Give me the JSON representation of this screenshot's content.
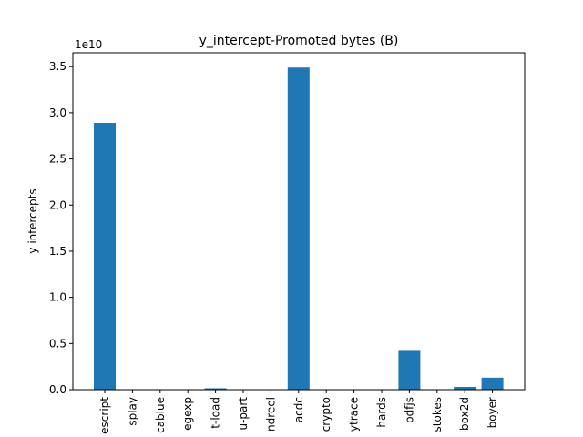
{
  "chart_data": {
    "type": "bar",
    "title": "y_intercept-Promoted bytes (B)",
    "xlabel": "",
    "ylabel": "y intercepts",
    "scale_label": "1e10",
    "categories": [
      "escript",
      "splay",
      "cablue",
      "egexp",
      "t-load",
      "u-part",
      "ndreel",
      "acdc",
      "crypto",
      "ytrace",
      "hards",
      "pdfjs",
      "stokes",
      "box2d",
      "boyer"
    ],
    "values": [
      28900000000,
      0,
      0,
      0,
      150000000,
      0,
      0,
      34900000000,
      0,
      0,
      0,
      4300000000,
      0,
      300000000,
      1300000000
    ],
    "ylim": [
      0,
      36500000000
    ],
    "yticks": [
      0,
      5000000000,
      10000000000,
      15000000000,
      20000000000,
      25000000000,
      30000000000,
      35000000000
    ],
    "ytick_labels": [
      "0.0",
      "0.5",
      "1.0",
      "1.5",
      "2.0",
      "2.5",
      "3.0",
      "3.5"
    ],
    "bar_color": "#1f77b4",
    "grid": false
  }
}
